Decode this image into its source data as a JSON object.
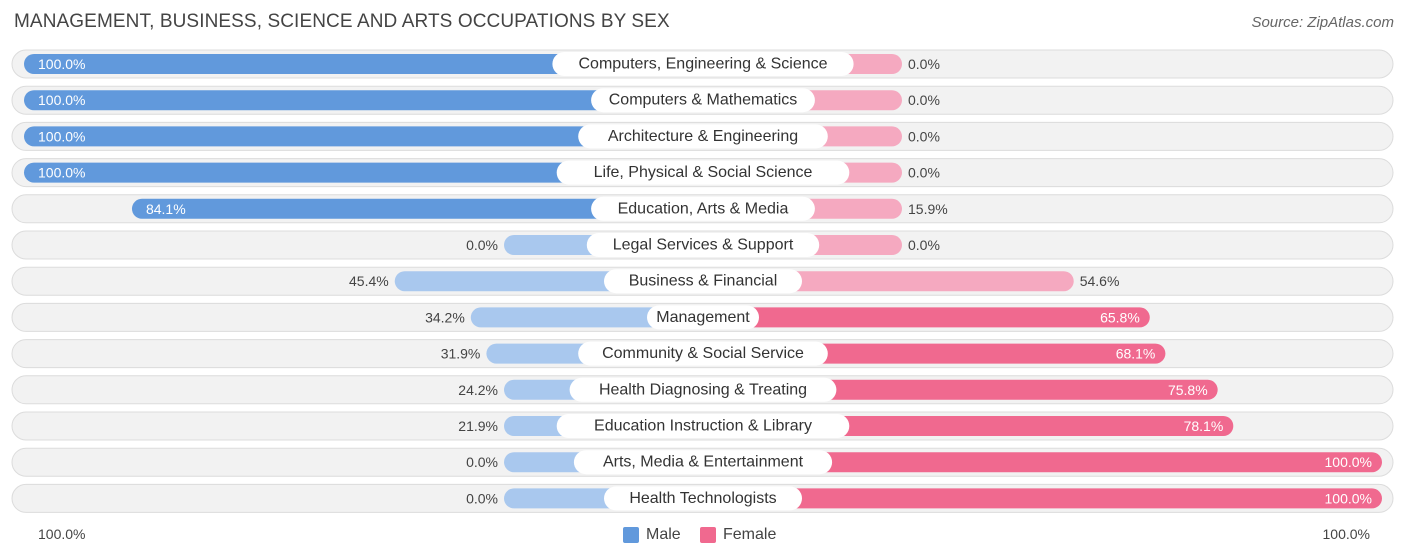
{
  "title": "MANAGEMENT, BUSINESS, SCIENCE AND ARTS OCCUPATIONS BY SEX",
  "source": "Source: ZipAtlas.com",
  "colors": {
    "male_strong": "#6199dc",
    "male_light": "#a9c8ee",
    "female_strong": "#f0698f",
    "female_light": "#f5a9c0",
    "row_bg": "#f2f2f2",
    "row_border": "#dcdcdc"
  },
  "chart_data": {
    "type": "bar",
    "orientation": "horizontal-diverging",
    "categories": [
      "Computers, Engineering & Science",
      "Computers & Mathematics",
      "Architecture & Engineering",
      "Life, Physical & Social Science",
      "Education, Arts & Media",
      "Legal Services & Support",
      "Business & Financial",
      "Management",
      "Community & Social Service",
      "Health Diagnosing & Treating",
      "Education Instruction & Library",
      "Arts, Media & Entertainment",
      "Health Technologists"
    ],
    "series": [
      {
        "name": "Male",
        "values": [
          100.0,
          100.0,
          100.0,
          100.0,
          84.1,
          0.0,
          45.4,
          34.2,
          31.9,
          24.2,
          21.9,
          0.0,
          0.0
        ],
        "labels": [
          "100.0%",
          "100.0%",
          "100.0%",
          "100.0%",
          "84.1%",
          "0.0%",
          "45.4%",
          "34.2%",
          "31.9%",
          "24.2%",
          "21.9%",
          "0.0%",
          "0.0%"
        ]
      },
      {
        "name": "Female",
        "values": [
          0.0,
          0.0,
          0.0,
          0.0,
          15.9,
          0.0,
          54.6,
          65.8,
          68.1,
          75.8,
          78.1,
          100.0,
          100.0
        ],
        "labels": [
          "0.0%",
          "0.0%",
          "0.0%",
          "0.0%",
          "15.9%",
          "0.0%",
          "54.6%",
          "65.8%",
          "68.1%",
          "75.8%",
          "78.1%",
          "100.0%",
          "100.0%"
        ]
      }
    ],
    "xlim": [
      0,
      100
    ],
    "axis_left_label": "100.0%",
    "axis_right_label": "100.0%",
    "legend_position": "bottom-center"
  }
}
